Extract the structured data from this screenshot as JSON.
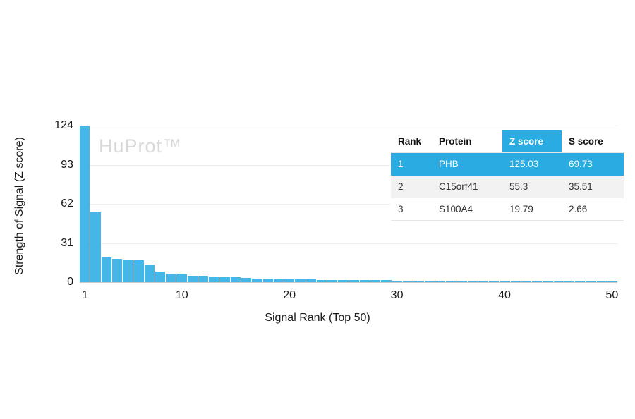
{
  "watermark": "HuProt™",
  "colors": {
    "bar": "#45b6e8",
    "highlight": "#2aabe2",
    "highlight_text": "#ffffff",
    "row_alt": "#f2f2f2",
    "watermark": "#d9d9d9"
  },
  "chart_data": {
    "type": "bar",
    "title": "",
    "xlabel": "Signal Rank (Top 50)",
    "ylabel": "Strength of Signal (Z score)",
    "ylim": [
      0,
      124
    ],
    "y_ticks": [
      0,
      31,
      62,
      93,
      124
    ],
    "x_ticks": [
      1,
      10,
      20,
      30,
      40,
      50
    ],
    "grid": "faint horizontal",
    "x": [
      1,
      2,
      3,
      4,
      5,
      6,
      7,
      8,
      9,
      10,
      11,
      12,
      13,
      14,
      15,
      16,
      17,
      18,
      19,
      20,
      21,
      22,
      23,
      24,
      25,
      26,
      27,
      28,
      29,
      30,
      31,
      32,
      33,
      34,
      35,
      36,
      37,
      38,
      39,
      40,
      41,
      42,
      43,
      44,
      45,
      46,
      47,
      48,
      49,
      50
    ],
    "values": [
      125.03,
      55.3,
      19.79,
      18.6,
      17.9,
      17.3,
      13.8,
      8.3,
      6.6,
      5.9,
      5.3,
      4.9,
      4.5,
      4.1,
      3.7,
      3.3,
      3.0,
      2.7,
      2.5,
      2.3,
      2.1,
      2.0,
      1.9,
      1.8,
      1.7,
      1.6,
      1.55,
      1.5,
      1.45,
      1.4,
      1.35,
      1.3,
      1.25,
      1.2,
      1.15,
      1.1,
      1.05,
      1.0,
      0.97,
      0.94,
      0.91,
      0.88,
      0.85,
      0.82,
      0.8,
      0.77,
      0.75,
      0.72,
      0.7,
      0.68
    ]
  },
  "table": {
    "headers": [
      "Rank",
      "Protein",
      "Z score",
      "S score"
    ],
    "rows": [
      {
        "rank": "1",
        "protein": "PHB",
        "z": "125.03",
        "s": "69.73"
      },
      {
        "rank": "2",
        "protein": "C15orf41",
        "z": "55.3",
        "s": "35.51"
      },
      {
        "rank": "3",
        "protein": "S100A4",
        "z": "19.79",
        "s": "2.66"
      }
    ]
  }
}
